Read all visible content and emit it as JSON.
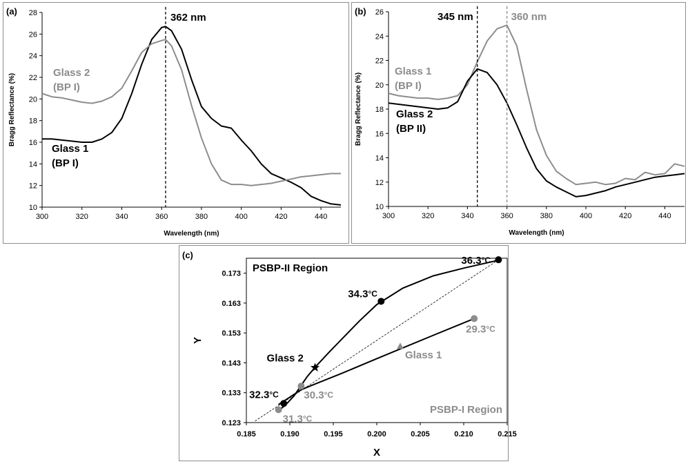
{
  "colors": {
    "black": "#000000",
    "gray": "#8c8c8c"
  },
  "chart_data": [
    {
      "type": "line",
      "panel_label": "(a)",
      "xlabel": "Wavelength (nm)",
      "ylabel": "Bragg Reflectance (%)",
      "xlim": [
        300,
        450
      ],
      "ylim": [
        10,
        28
      ],
      "xticks": [
        "300",
        "320",
        "340",
        "360",
        "380",
        "400",
        "420",
        "440"
      ],
      "yticks": [
        "10",
        "12",
        "14",
        "16",
        "18",
        "20",
        "22",
        "24",
        "26",
        "28"
      ],
      "vlines": [
        {
          "x": 362,
          "label": "362 nm",
          "color": "#000000"
        }
      ],
      "series": [
        {
          "label_line1": "Glass 1",
          "label_line2": "(BP I)",
          "color": "#000000",
          "x": [
            300,
            305,
            310,
            315,
            320,
            325,
            330,
            335,
            340,
            345,
            350,
            355,
            360,
            362,
            365,
            370,
            375,
            380,
            385,
            390,
            395,
            400,
            405,
            410,
            415,
            420,
            425,
            430,
            435,
            440,
            445,
            450
          ],
          "y": [
            16.3,
            16.3,
            16.2,
            16.1,
            16.0,
            16.0,
            16.3,
            16.9,
            18.2,
            20.5,
            23.2,
            25.5,
            26.6,
            26.7,
            26.3,
            24.6,
            21.8,
            19.3,
            18.2,
            17.5,
            17.3,
            16.2,
            15.2,
            14.0,
            13.1,
            12.7,
            12.3,
            11.8,
            11.0,
            10.6,
            10.3,
            10.2
          ]
        },
        {
          "label_line1": "Glass 2",
          "label_line2": "(BP I)",
          "color": "#8c8c8c",
          "x": [
            300,
            305,
            310,
            315,
            320,
            325,
            330,
            335,
            340,
            345,
            350,
            355,
            360,
            362,
            365,
            370,
            375,
            380,
            385,
            390,
            395,
            400,
            405,
            410,
            415,
            420,
            425,
            430,
            435,
            440,
            445,
            450
          ],
          "y": [
            20.5,
            20.2,
            20.1,
            19.9,
            19.7,
            19.6,
            19.8,
            20.2,
            21.0,
            22.6,
            24.3,
            25.1,
            25.4,
            25.5,
            24.9,
            22.7,
            19.4,
            16.4,
            14.0,
            12.5,
            12.1,
            12.1,
            12.0,
            12.1,
            12.2,
            12.4,
            12.6,
            12.8,
            12.9,
            13.0,
            13.1,
            13.1
          ]
        }
      ]
    },
    {
      "type": "line",
      "panel_label": "(b)",
      "xlabel": "Wavelength (nm)",
      "ylabel": "Bragg Reflectance (%)",
      "xlim": [
        300,
        450
      ],
      "ylim": [
        10,
        26
      ],
      "xticks": [
        "300",
        "320",
        "340",
        "360",
        "380",
        "400",
        "420",
        "440"
      ],
      "yticks": [
        "10",
        "12",
        "14",
        "16",
        "18",
        "20",
        "22",
        "24",
        "26"
      ],
      "vlines": [
        {
          "x": 345,
          "label": "345 nm",
          "color": "#000000"
        },
        {
          "x": 360,
          "label": "360 nm",
          "color": "#8c8c8c"
        }
      ],
      "series": [
        {
          "label_line1": "Glass 1",
          "label_line2": "(BP I)",
          "color": "#8c8c8c",
          "x": [
            300,
            305,
            310,
            315,
            320,
            325,
            330,
            335,
            340,
            345,
            350,
            355,
            360,
            365,
            370,
            375,
            380,
            385,
            390,
            395,
            400,
            405,
            410,
            415,
            420,
            425,
            430,
            435,
            440,
            445,
            450
          ],
          "y": [
            19.3,
            19.1,
            19.0,
            18.9,
            18.9,
            18.8,
            18.9,
            19.1,
            20.0,
            21.9,
            23.6,
            24.6,
            24.9,
            23.2,
            19.6,
            16.3,
            14.2,
            12.9,
            12.3,
            11.8,
            11.9,
            12.0,
            11.8,
            11.9,
            12.3,
            12.2,
            12.8,
            12.6,
            12.7,
            13.5,
            13.3
          ]
        },
        {
          "label_line1": "Glass 2",
          "label_line2": "(BP II)",
          "color": "#000000",
          "x": [
            300,
            305,
            310,
            315,
            320,
            325,
            330,
            335,
            340,
            345,
            350,
            355,
            360,
            365,
            370,
            375,
            380,
            385,
            390,
            395,
            400,
            405,
            410,
            415,
            420,
            425,
            430,
            435,
            440,
            445,
            450
          ],
          "y": [
            18.5,
            18.4,
            18.3,
            18.2,
            18.1,
            18.0,
            18.1,
            18.6,
            20.3,
            21.3,
            21.0,
            20.0,
            18.5,
            16.7,
            14.8,
            13.1,
            12.1,
            11.6,
            11.2,
            10.8,
            10.9,
            11.1,
            11.3,
            11.6,
            11.8,
            12.0,
            12.2,
            12.4,
            12.5,
            12.6,
            12.7
          ]
        }
      ]
    },
    {
      "type": "scatter",
      "panel_label": "(c)",
      "xlabel": "X",
      "ylabel": "Y",
      "xlim": [
        0.185,
        0.215
      ],
      "ylim": [
        0.123,
        0.178
      ],
      "xticks": [
        "0.185",
        "0.190",
        "0.195",
        "0.200",
        "0.205",
        "0.210",
        "0.215"
      ],
      "yticks": [
        "0.123",
        "0.133",
        "0.143",
        "0.153",
        "0.163",
        "0.173"
      ],
      "region_labels": [
        {
          "text": "PSBP-II Region",
          "color": "#000000"
        },
        {
          "text": "PSBP-I Region",
          "color": "#8c8c8c"
        }
      ],
      "black_curve": {
        "x": [
          0.1887,
          0.1893,
          0.1897,
          0.1905,
          0.1912,
          0.192,
          0.193,
          0.1945,
          0.196,
          0.198,
          0.2,
          0.203,
          0.2065,
          0.21,
          0.2135,
          0.214
        ],
        "y": [
          0.127,
          0.1284,
          0.1295,
          0.132,
          0.135,
          0.1384,
          0.1418,
          0.1465,
          0.151,
          0.157,
          0.1625,
          0.168,
          0.1721,
          0.1747,
          0.177,
          0.1775
        ]
      },
      "gray_line": {
        "x": [
          0.1887,
          0.19,
          0.1913,
          0.193,
          0.196,
          0.2,
          0.203,
          0.207,
          0.2112
        ],
        "y": [
          0.129,
          0.1315,
          0.134,
          0.136,
          0.1395,
          0.1444,
          0.148,
          0.1528,
          0.1578
        ]
      },
      "diagonal": {
        "x": [
          0.186,
          0.214
        ],
        "y": [
          0.1235,
          0.1775
        ]
      },
      "points": [
        {
          "x": 0.214,
          "y": 0.1775,
          "label": "36.3",
          "marker": "circle",
          "color": "#000000"
        },
        {
          "x": 0.2005,
          "y": 0.1636,
          "label": "34.3",
          "marker": "circle",
          "color": "#000000"
        },
        {
          "x": 0.1893,
          "y": 0.1294,
          "label": "32.3",
          "marker": "circle",
          "color": "#000000"
        },
        {
          "x": 0.2112,
          "y": 0.1578,
          "label": "29.3",
          "marker": "circle",
          "color": "#8c8c8c"
        },
        {
          "x": 0.1913,
          "y": 0.1352,
          "label": "30.3",
          "marker": "circle",
          "color": "#8c8c8c"
        },
        {
          "x": 0.1887,
          "y": 0.1273,
          "label": "31.3",
          "marker": "circle",
          "color": "#8c8c8c"
        },
        {
          "x": 0.1929,
          "y": 0.1414,
          "label": "Glass 2",
          "marker": "star",
          "color": "#000000"
        },
        {
          "x": 0.2027,
          "y": 0.1486,
          "label": "Glass 1",
          "marker": "triangle",
          "color": "#8c8c8c"
        }
      ],
      "temp_unit": "°C"
    }
  ]
}
